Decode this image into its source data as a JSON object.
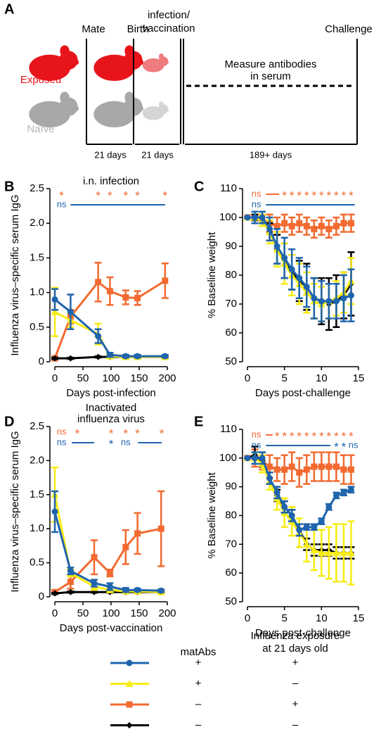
{
  "diagram": {
    "panel_label": "A",
    "headers": {
      "mate": "Mate",
      "birth": "Birth",
      "infection": [
        "infection/",
        "vaccination"
      ],
      "challenge": "Challenge"
    },
    "groups": {
      "exposed": "Exposed",
      "naive": "Naïve"
    },
    "measure": [
      "Measure antibodies",
      "in serum"
    ],
    "intervals": [
      "21 days",
      "21 days",
      "189+ days"
    ]
  },
  "chart_data": [
    {
      "type": "line",
      "panel_label": "B",
      "subtitle": [
        "i.n. infection"
      ],
      "xlabel": "Days post-infection",
      "ylabel": "Influenza virus–specific serum IgG",
      "xlim": [
        0,
        200
      ],
      "xticks": [
        0,
        50,
        100,
        150,
        200
      ],
      "ylim": [
        0,
        2.5
      ],
      "yticks": [
        0,
        0.5,
        {
          "value": 1,
          "label": "1.0"
        },
        1.5,
        {
          "value": 2,
          "label": "2.0"
        },
        2.5
      ],
      "grid": false,
      "x": [
        0,
        28,
        77,
        98,
        126,
        147,
        196
      ],
      "series": [
        {
          "color": "#f26a30",
          "marker": "square",
          "values": [
            0.05,
            0.65,
            1.15,
            1.02,
            0.93,
            0.92,
            1.17
          ],
          "errors": [
            0.02,
            0.1,
            0.28,
            0.2,
            0.1,
            0.1,
            0.25
          ]
        },
        {
          "color": "#000000",
          "marker": "diamond",
          "values": [
            0.05,
            0.05,
            0.07,
            0.07,
            0.07,
            0.07,
            0.07
          ],
          "errors": [
            0.01,
            0.01,
            0.01,
            0.01,
            0.01,
            0.01,
            0.01
          ]
        },
        {
          "color": "#f7ec13",
          "marker": "triangle",
          "values": [
            0.72,
            0.6,
            0.4,
            0.08,
            0.07,
            0.07,
            0.07
          ],
          "errors": [
            0.35,
            0.1,
            0.15,
            0.02,
            0.02,
            0.02,
            0.02
          ]
        },
        {
          "color": "#1f64ad",
          "marker": "circle",
          "values": [
            0.9,
            0.72,
            0.37,
            0.1,
            0.08,
            0.08,
            0.08
          ],
          "errors": [
            0.15,
            0.25,
            0.1,
            0.03,
            0.02,
            0.02,
            0.02
          ]
        }
      ],
      "significance": [
        {
          "color": "#f26a30",
          "marks": [
            {
              "x": 12,
              "text": "*"
            },
            {
              "x": 77,
              "text": "*"
            },
            {
              "x": 98,
              "text": "*"
            },
            {
              "x": 126,
              "text": "*"
            },
            {
              "x": 147,
              "text": "*"
            },
            {
              "x": 196,
              "text": "*"
            }
          ],
          "lines": []
        },
        {
          "color": "#1f64ad",
          "marks": [
            {
              "x": 12,
              "text": "ns"
            }
          ],
          "lines": [
            [
              28,
              196
            ]
          ]
        }
      ]
    },
    {
      "type": "line",
      "panel_label": "C",
      "subtitle": [],
      "xlabel": "Days post-challenge",
      "ylabel": "% Baseline weight",
      "xlim": [
        0,
        15
      ],
      "xticks": [
        0,
        5,
        10,
        15
      ],
      "ylim": [
        50,
        110
      ],
      "yticks": [
        50,
        60,
        70,
        80,
        90,
        100,
        110
      ],
      "grid": false,
      "x": [
        0,
        1,
        2,
        3,
        4,
        5,
        6,
        7,
        8,
        9,
        10,
        11,
        12,
        13,
        14
      ],
      "series": [
        {
          "color": "#f26a30",
          "marker": "square",
          "values": [
            100,
            100,
            99,
            98,
            97,
            98,
            97,
            98,
            97,
            96,
            97,
            96,
            97,
            98,
            98
          ],
          "errors": [
            0,
            1,
            2,
            3,
            3,
            3,
            3,
            3,
            3,
            3,
            3,
            3,
            3,
            3,
            3
          ]
        },
        {
          "color": "#000000",
          "marker": "diamond",
          "values": [
            100,
            100,
            99,
            95,
            89,
            85,
            81,
            78,
            76,
            72,
            71,
            70,
            71,
            73,
            77
          ],
          "errors": [
            0,
            1,
            2,
            3,
            5,
            6,
            6,
            7,
            8,
            7,
            8,
            9,
            9,
            8,
            11
          ]
        },
        {
          "color": "#f7ec13",
          "marker": "triangle",
          "values": [
            100,
            100,
            99,
            95,
            89,
            84,
            80,
            77,
            74,
            71,
            70,
            71,
            72,
            74,
            78
          ],
          "errors": [
            0,
            2,
            2,
            4,
            6,
            7,
            7,
            7,
            7,
            6,
            6,
            6,
            6,
            7,
            8
          ]
        },
        {
          "color": "#1f64ad",
          "marker": "circle",
          "values": [
            100,
            100,
            100,
            96,
            90,
            86,
            82,
            79,
            76,
            72,
            71,
            71,
            71,
            72,
            73
          ],
          "errors": [
            0,
            2,
            2,
            4,
            6,
            7,
            7,
            7,
            7,
            7,
            7,
            6,
            6,
            8,
            9
          ]
        }
      ],
      "significance": [
        {
          "color": "#f26a30",
          "marks": [
            {
              "x": 1.2,
              "text": "ns"
            },
            {
              "x": 5,
              "text": "*"
            },
            {
              "x": 6,
              "text": "*"
            },
            {
              "x": 7,
              "text": "*"
            },
            {
              "x": 8,
              "text": "*"
            },
            {
              "x": 9,
              "text": "*"
            },
            {
              "x": 10,
              "text": "*"
            },
            {
              "x": 11,
              "text": "*"
            },
            {
              "x": 12,
              "text": "*"
            },
            {
              "x": 13,
              "text": "*"
            },
            {
              "x": 14,
              "text": "*"
            }
          ],
          "lines": [
            [
              2.5,
              4.3
            ]
          ]
        },
        {
          "color": "#1f64ad",
          "marks": [
            {
              "x": 1.2,
              "text": "ns"
            }
          ],
          "lines": [
            [
              2.5,
              14.5
            ]
          ]
        }
      ]
    },
    {
      "type": "line",
      "panel_label": "D",
      "subtitle": [
        "Inactivated",
        "influenza virus"
      ],
      "xlabel": "Days post-vaccination",
      "ylabel": "Influenza virus–specific serum IgG",
      "xlim": [
        0,
        200
      ],
      "xticks": [
        0,
        50,
        100,
        150,
        200
      ],
      "ylim": [
        0,
        2.5
      ],
      "yticks": [
        0,
        0.5,
        {
          "value": 1,
          "label": "1.0"
        },
        1.5,
        {
          "value": 2,
          "label": "2.0"
        },
        2.5
      ],
      "grid": false,
      "x": [
        0,
        28,
        70,
        98,
        126,
        147,
        189
      ],
      "series": [
        {
          "color": "#f26a30",
          "marker": "square",
          "values": [
            0.07,
            0.22,
            0.58,
            0.35,
            0.73,
            0.93,
            1.0
          ],
          "errors": [
            0.02,
            0.1,
            0.25,
            0.05,
            0.25,
            0.3,
            0.55
          ]
        },
        {
          "color": "#000000",
          "marker": "diamond",
          "values": [
            0.05,
            0.07,
            0.07,
            0.07,
            0.07,
            0.07,
            0.07
          ],
          "errors": [
            0.01,
            0.01,
            0.01,
            0.01,
            0.01,
            0.01,
            0.01
          ]
        },
        {
          "color": "#f7ec13",
          "marker": "triangle",
          "values": [
            1.5,
            0.35,
            0.15,
            0.1,
            0.08,
            0.08,
            0.07
          ],
          "errors": [
            0.4,
            0.05,
            0.05,
            0.03,
            0.02,
            0.02,
            0.02
          ]
        },
        {
          "color": "#1f64ad",
          "marker": "circle",
          "values": [
            1.25,
            0.38,
            0.2,
            0.15,
            0.1,
            0.1,
            0.09
          ],
          "errors": [
            0.3,
            0.05,
            0.05,
            0.05,
            0.03,
            0.02,
            0.02
          ]
        }
      ],
      "significance": [
        {
          "color": "#f26a30",
          "marks": [
            {
              "x": 12,
              "text": "ns"
            },
            {
              "x": 40,
              "text": "*"
            },
            {
              "x": 100,
              "text": "*"
            },
            {
              "x": 126,
              "text": "*"
            },
            {
              "x": 147,
              "text": "*"
            },
            {
              "x": 190,
              "text": "*"
            }
          ],
          "lines": []
        },
        {
          "color": "#1f64ad",
          "marks": [
            {
              "x": 12,
              "text": "ns"
            },
            {
              "x": 100,
              "text": "*"
            },
            {
              "x": 126,
              "text": "ns"
            }
          ],
          "lines": [
            [
              30,
              70
            ],
            [
              148,
              190
            ]
          ]
        }
      ]
    },
    {
      "type": "line",
      "panel_label": "E",
      "subtitle": [],
      "xlabel": "Days post-challenge",
      "ylabel": "% Baseline weight",
      "xlim": [
        0,
        15
      ],
      "xticks": [
        0,
        5,
        10,
        15
      ],
      "ylim": [
        50,
        110
      ],
      "yticks": [
        50,
        60,
        70,
        80,
        90,
        100,
        110
      ],
      "grid": false,
      "x": [
        0,
        1,
        2,
        3,
        4,
        5,
        6,
        7,
        8,
        9,
        10,
        11,
        12,
        13,
        14
      ],
      "series": [
        {
          "color": "#f26a30",
          "marker": "square",
          "values": [
            100,
            100,
            99,
            97,
            96,
            96,
            97,
            95,
            96,
            97,
            97,
            97,
            97,
            96,
            96
          ],
          "errors": [
            0,
            3,
            3,
            4,
            4,
            5,
            5,
            5,
            5,
            5,
            5,
            5,
            5,
            5,
            5
          ]
        },
        {
          "color": "#000000",
          "marker": "diamond",
          "values": [
            100,
            101,
            99,
            93,
            87,
            83,
            80,
            75,
            70,
            68,
            68,
            68,
            67,
            67,
            67
          ],
          "errors": [
            0,
            3,
            2,
            2,
            2,
            2,
            2,
            2,
            2,
            2,
            2,
            2,
            2,
            2,
            2
          ]
        },
        {
          "color": "#f7ec13",
          "marker": "triangle",
          "values": [
            100,
            100,
            98,
            92,
            86,
            81,
            78,
            74,
            70,
            68,
            67,
            67,
            67,
            67,
            67
          ],
          "errors": [
            0,
            2,
            3,
            3,
            4,
            5,
            5,
            5,
            6,
            7,
            8,
            9,
            10,
            10,
            11
          ]
        },
        {
          "color": "#1f64ad",
          "marker": "circle",
          "values": [
            100,
            100,
            100,
            93,
            88,
            83,
            80,
            75,
            76,
            76,
            78,
            83,
            87,
            88,
            89
          ],
          "errors": [
            0,
            2,
            2,
            2,
            2,
            2,
            2,
            2,
            1,
            1,
            1,
            1,
            1,
            1,
            1
          ]
        }
      ],
      "significance": [
        {
          "color": "#f26a30",
          "marks": [
            {
              "x": 1.2,
              "text": "ns"
            },
            {
              "x": 4,
              "text": "*"
            },
            {
              "x": 5,
              "text": "*"
            },
            {
              "x": 6,
              "text": "*"
            },
            {
              "x": 7,
              "text": "*"
            },
            {
              "x": 8,
              "text": "*"
            },
            {
              "x": 9,
              "text": "*"
            },
            {
              "x": 10,
              "text": "*"
            },
            {
              "x": 11,
              "text": "*"
            },
            {
              "x": 12,
              "text": "*"
            },
            {
              "x": 13,
              "text": "*"
            },
            {
              "x": 14,
              "text": "*"
            }
          ],
          "lines": [
            [
              2.5,
              3.4
            ]
          ]
        },
        {
          "color": "#1f64ad",
          "marks": [
            {
              "x": 1.2,
              "text": "ns"
            },
            {
              "x": 12,
              "text": "*"
            },
            {
              "x": 13,
              "text": "*"
            },
            {
              "x": 14.3,
              "text": "ns"
            }
          ],
          "lines": [
            [
              2.5,
              11.2
            ]
          ]
        }
      ]
    }
  ],
  "legend": {
    "headers": {
      "matabs": "matAbs",
      "exposure": [
        "Influenza exposure",
        "at 21 days old"
      ]
    },
    "rows": [
      {
        "color": "#1f64ad",
        "marker": "circle",
        "matabs": "+",
        "exposure": "+"
      },
      {
        "color": "#f7ec13",
        "marker": "triangle",
        "matabs": "+",
        "exposure": "–"
      },
      {
        "color": "#f26a30",
        "marker": "square",
        "matabs": "–",
        "exposure": "+"
      },
      {
        "color": "#000000",
        "marker": "diamond",
        "matabs": "–",
        "exposure": "–"
      }
    ]
  }
}
